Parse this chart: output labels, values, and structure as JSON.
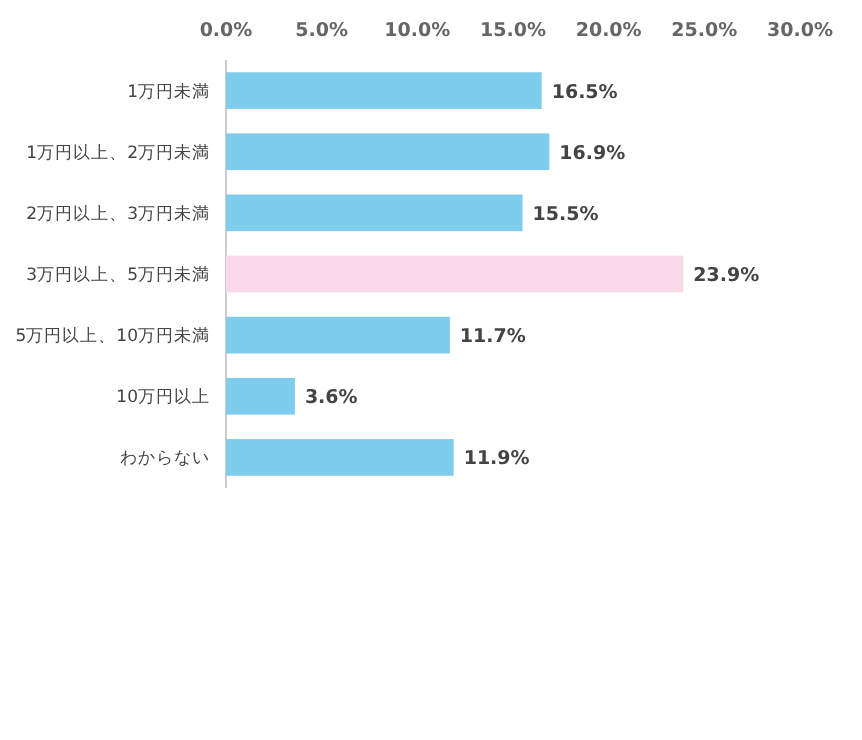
{
  "chart_data": {
    "type": "bar",
    "orientation": "horizontal",
    "categories": [
      "1万円未満",
      "1万円以上、2万円未満",
      "2万円以上、3万円未満",
      "3万円以上、5万円未満",
      "5万円以上、10万円未満",
      "10万円以上",
      "わからない"
    ],
    "values": [
      16.5,
      16.9,
      15.5,
      23.9,
      11.7,
      3.6,
      11.9
    ],
    "colors": [
      "#7ecdec",
      "#7ecdec",
      "#7ecdec",
      "#f9d9ea",
      "#7ecdec",
      "#7ecdec",
      "#7ecdec"
    ],
    "value_labels": [
      "16.5%",
      "16.9%",
      "15.5%",
      "23.9%",
      "11.7%",
      "3.6%",
      "11.9%"
    ],
    "xlim": [
      0,
      30
    ],
    "xticks": [
      {
        "value": 0,
        "label": "0.0%"
      },
      {
        "value": 5,
        "label": "5.0%"
      },
      {
        "value": 10,
        "label": "10.0%"
      },
      {
        "value": 15,
        "label": "15.0%"
      },
      {
        "value": 20,
        "label": "20.0%"
      },
      {
        "value": 25,
        "label": "25.0%"
      },
      {
        "value": 30,
        "label": "30.0%"
      }
    ]
  }
}
